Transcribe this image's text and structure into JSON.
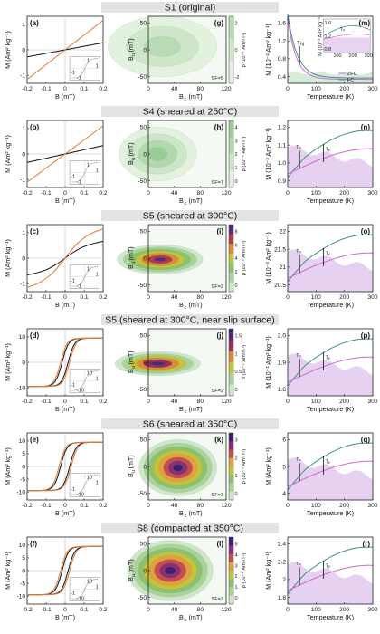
{
  "colors": {
    "banner": "#e3e3e3",
    "hyst_original": "#111111",
    "hyst_heated": "#e07a3a",
    "fc": "#3f8f8f",
    "zfc": "#d06ad0",
    "bg_fill": "#e2c9ef",
    "green_fill": "#cfe8d2"
  },
  "figure": {
    "rows": [
      {
        "title": "S1 (original)",
        "hyst": {
          "letter": "(a)",
          "ylabel": "M (Am² kg⁻¹)",
          "yticks": [
            "1",
            "0",
            "-1"
          ],
          "xticks": [
            "-0.2",
            "-0.1",
            "0",
            "0.1",
            "0.2"
          ],
          "xlabel": "B (mT)",
          "inset_ticks": [
            "1",
            "-1",
            "-1",
            "1"
          ]
        },
        "forc": {
          "letter": "(g)",
          "ylabel": "B",
          "ysub": "u",
          "yunit": "(mT)",
          "yticks": [
            "50",
            "0",
            "-50"
          ],
          "xlabel": "B",
          "xsub": "c",
          "xunit": "(mT)",
          "xticks": [
            "0",
            "40",
            "80",
            "120"
          ],
          "sf": "SF=5",
          "cbar_label": "ρ (10⁻⁴ Am²/T²)",
          "cbar_ticks": [
            "2",
            "0",
            "-2"
          ]
        },
        "lowT": {
          "letter": "(m)",
          "ylabel": "M (10⁻² Am² kg⁻¹)",
          "yticks": [
            "1.6",
            "1.2",
            "0.8",
            "0.4"
          ],
          "xlabel": "Temperature (K)",
          "xticks": [
            "0",
            "100",
            "200",
            "300"
          ],
          "markers": [
            "T",
            "N"
          ],
          "legend_zfc": "ZFC",
          "legend_fc": "FC",
          "inset_yticks": [
            "1.6",
            "1.2",
            "0.8"
          ],
          "inset_xticks": [
            "100",
            "200",
            "300"
          ],
          "inset_ylabel": "M (10⁻³ Am² kg⁻¹)",
          "inset_marker": "Tᵥ"
        }
      },
      {
        "title": "S4 (sheared at 250°C)",
        "hyst": {
          "letter": "(b)",
          "ylabel": "M (Am² kg⁻¹)",
          "yticks": [
            "1",
            "0",
            "-1"
          ],
          "xticks": [
            "-0.2",
            "-0.1",
            "0",
            "0.1",
            "0.2"
          ],
          "xlabel": "B (mT)",
          "inset_ticks": [
            "1",
            "-1",
            "-1",
            "1"
          ]
        },
        "forc": {
          "letter": "(h)",
          "ylabel": "B",
          "ysub": "u",
          "yunit": "(mT)",
          "yticks": [
            "50",
            "0",
            "-50"
          ],
          "xlabel": "B",
          "xsub": "c",
          "xunit": "(mT)",
          "xticks": [
            "0",
            "40",
            "80",
            "120"
          ],
          "sf": "SF=7",
          "cbar_label": "ρ (10⁻⁴ Am²/T²)",
          "cbar_ticks": [
            "4",
            "3",
            "2",
            "1",
            "0"
          ]
        },
        "lowT": {
          "letter": "(n)",
          "ylabel": "M (10⁻³ Am² kg⁻¹)",
          "yticks": [
            "1.2",
            "1.1",
            "1.0",
            "0.9"
          ],
          "xlabel": "Temperature (K)",
          "xticks": [
            "0",
            "100",
            "200",
            "300"
          ],
          "markers": [
            "Tₙ",
            "Tᵥ"
          ]
        }
      },
      {
        "title": "S5 (sheared at 300°C)",
        "hyst": {
          "letter": "(c)",
          "ylabel": "M (Am² kg⁻¹)",
          "yticks": [
            "1",
            "0",
            "-1"
          ],
          "xticks": [
            "-0.2",
            "-0.1",
            "0",
            "0.1",
            "0.2"
          ],
          "xlabel": "B (mT)",
          "inset_ticks": [
            "1",
            "-1",
            "-1",
            "1"
          ]
        },
        "forc": {
          "letter": "(i)",
          "ylabel": "B",
          "ysub": "u",
          "yunit": "(mT)",
          "yticks": [
            "50",
            "0",
            "-50"
          ],
          "xlabel": "B",
          "xsub": "c",
          "xunit": "(mT)",
          "xticks": [
            "0",
            "40",
            "80",
            "120"
          ],
          "sf": "SF=2",
          "cbar_label": "ρ (10⁻⁵ Am²/T²)",
          "cbar_ticks": [
            "8",
            "6",
            "4",
            "2",
            "0"
          ]
        },
        "lowT": {
          "letter": "(o)",
          "ylabel": "M (10⁻³ Am² kg⁻¹)",
          "yticks": [
            "22",
            "21.5",
            "21",
            "20.5"
          ],
          "xlabel": "Temperature (K)",
          "xticks": [
            "0",
            "100",
            "200",
            "300"
          ],
          "markers": [
            "Tₙ",
            "Tᵥ"
          ]
        }
      },
      {
        "title": "S5 (sheared at 300°C, near slip surface)",
        "hyst": {
          "letter": "(d)",
          "ylabel": "M (Am² kg⁻¹)",
          "yticks": [
            "10",
            "0",
            "-10"
          ],
          "xticks": [
            "-0.2",
            "-0.1",
            "0",
            "0.1",
            "0.2"
          ],
          "xlabel": "B (mT)",
          "inset_ticks": [
            "10",
            "-1",
            "-10",
            "1"
          ]
        },
        "forc": {
          "letter": "(j)",
          "ylabel": "B",
          "ysub": "u",
          "yunit": "(mT)",
          "yticks": [
            "50",
            "0",
            "-50"
          ],
          "xlabel": "B",
          "xsub": "c",
          "xunit": "(mT)",
          "xticks": [
            "0",
            "40",
            "80",
            "120"
          ],
          "sf": "SF=2",
          "cbar_label": "ρ (10⁻⁵ Am²/T²)",
          "cbar_ticks": [
            "1.5",
            "1",
            "0.5",
            "0"
          ]
        },
        "lowT": {
          "letter": "(p)",
          "ylabel": "M (10⁻¹ Am² kg⁻¹)",
          "yticks": [
            "2.0",
            "1.9",
            "1.8"
          ],
          "xlabel": "Temperature (K)",
          "xticks": [
            "0",
            "100",
            "200",
            "300"
          ],
          "markers": [
            "Tₙ",
            "Tᵥ"
          ]
        }
      },
      {
        "title": "S6 (sheared at 350°C)",
        "hyst": {
          "letter": "(e)",
          "ylabel": "M (Am² kg⁻¹)",
          "yticks": [
            "10",
            "5",
            "0",
            "-5",
            "-10"
          ],
          "xticks": [
            "-0.2",
            "-0.1",
            "0",
            "0.1",
            "0.2"
          ],
          "xlabel": "B (mT)",
          "inset_ticks": [
            "10",
            "-1",
            "-10",
            "1"
          ]
        },
        "forc": {
          "letter": "(k)",
          "ylabel": "B",
          "ysub": "u",
          "yunit": "(mT)",
          "yticks": [
            "50",
            "0",
            "-50"
          ],
          "xlabel": "B",
          "xsub": "c",
          "xunit": "(mT)",
          "xticks": [
            "0",
            "40",
            "80",
            "120"
          ],
          "sf": "SF=3",
          "cbar_label": "ρ (10⁻⁴ Am²/T²)",
          "cbar_ticks": [
            "3",
            "2",
            "1",
            "0"
          ]
        },
        "lowT": {
          "letter": "(q)",
          "ylabel": "M (Am² kg⁻¹)",
          "yticks": [
            "6",
            "5",
            "4"
          ],
          "xlabel": "Temperature (K)",
          "xticks": [
            "0",
            "100",
            "200",
            "300"
          ],
          "markers": [
            "Tₙ",
            "Tᵥ"
          ]
        }
      },
      {
        "title": "S8 (compacted at 350°C)",
        "hyst": {
          "letter": "(f)",
          "ylabel": "M (Am² kg⁻¹)",
          "yticks": [
            "10",
            "5",
            "0",
            "-5",
            "-10"
          ],
          "xticks": [
            "-0.2",
            "-0.1",
            "0",
            "0.1",
            "0.2"
          ],
          "xlabel": "B (mT)",
          "inset_ticks": [
            "10",
            "-1",
            "-10",
            "1"
          ]
        },
        "forc": {
          "letter": "(l)",
          "ylabel": "B",
          "ysub": "u",
          "yunit": "(mT)",
          "yticks": [
            "50",
            "0",
            "-50"
          ],
          "xlabel": "B",
          "xsub": "c",
          "xunit": "(mT)",
          "xticks": [
            "0",
            "40",
            "80",
            "120"
          ],
          "sf": "SF=3",
          "cbar_label": "ρ (10⁻⁴ Am²/T²)",
          "cbar_ticks": [
            "5",
            "4",
            "3",
            "2",
            "1",
            "0"
          ]
        },
        "lowT": {
          "letter": "(r)",
          "ylabel": "M (Am² kg⁻¹)",
          "yticks": [
            "2.4",
            "2.2",
            "2",
            "1.8"
          ],
          "xlabel": "Temperature (K)",
          "xticks": [
            "0",
            "100",
            "200",
            "300"
          ],
          "markers": [
            "Tₙ",
            "Tᵥ"
          ]
        }
      }
    ]
  }
}
